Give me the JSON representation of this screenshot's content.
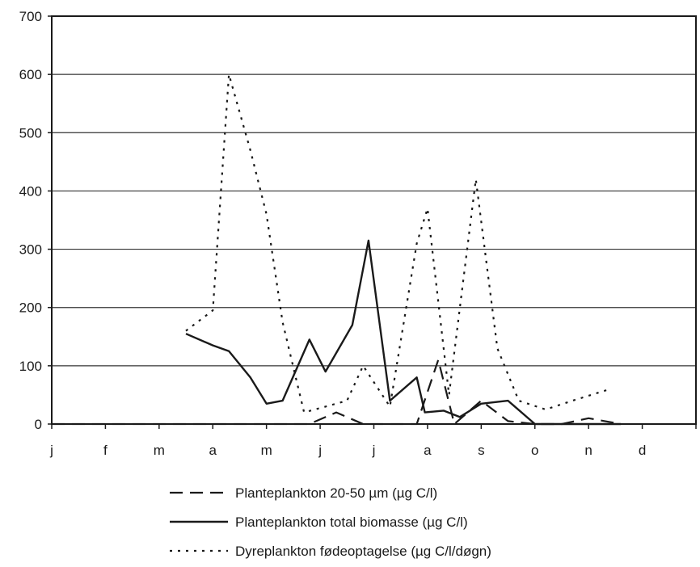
{
  "chart_data": {
    "type": "line",
    "title": "",
    "xlabel": "",
    "ylabel": "",
    "categories": [
      "j",
      "f",
      "m",
      "a",
      "m",
      "j",
      "j",
      "a",
      "s",
      "o",
      "n",
      "d"
    ],
    "ylim": [
      0,
      700
    ],
    "yticks": [
      0,
      100,
      200,
      300,
      400,
      500,
      600,
      700
    ],
    "grid": true,
    "legend_position": "bottom",
    "x_unit": "month index (0 = start of j, 12 = end of d)",
    "series": [
      {
        "name": "Planteplankton 20-50 µm (µg C/l)",
        "style": "dashed",
        "x": [
          0.0,
          2.5,
          3.0,
          4.0,
          4.8,
          5.3,
          5.8,
          6.0,
          6.5,
          6.8,
          7.2,
          7.5,
          8.0,
          8.5,
          9.0,
          9.5,
          10.0,
          10.6
        ],
        "y": [
          0,
          0,
          0,
          0,
          0,
          20,
          0,
          0,
          0,
          0,
          110,
          0,
          40,
          5,
          0,
          0,
          10,
          0
        ]
      },
      {
        "name": "Planteplankton total biomasse (µg C/l)",
        "style": "solid",
        "x": [
          2.5,
          3.0,
          3.3,
          3.7,
          4.0,
          4.3,
          4.8,
          5.1,
          5.6,
          5.9,
          6.3,
          6.8,
          6.95,
          7.3,
          7.6,
          8.0,
          8.5,
          9.0,
          9.5,
          10.0,
          10.6
        ],
        "y": [
          155,
          135,
          125,
          80,
          35,
          40,
          145,
          90,
          170,
          315,
          40,
          80,
          20,
          23,
          12,
          35,
          40,
          0,
          0,
          0,
          0
        ]
      },
      {
        "name": "Dyreplankton fødeoptagelse (µg C/l/døgn)",
        "style": "dotted",
        "x": [
          2.5,
          3.0,
          3.3,
          3.7,
          4.0,
          4.3,
          4.7,
          5.1,
          5.5,
          5.8,
          6.3,
          6.8,
          7.0,
          7.4,
          7.9,
          8.3,
          8.7,
          9.2,
          9.7,
          10.4
        ],
        "y": [
          160,
          195,
          600,
          470,
          360,
          175,
          20,
          30,
          40,
          100,
          30,
          310,
          370,
          50,
          420,
          130,
          40,
          25,
          40,
          60
        ]
      }
    ]
  }
}
